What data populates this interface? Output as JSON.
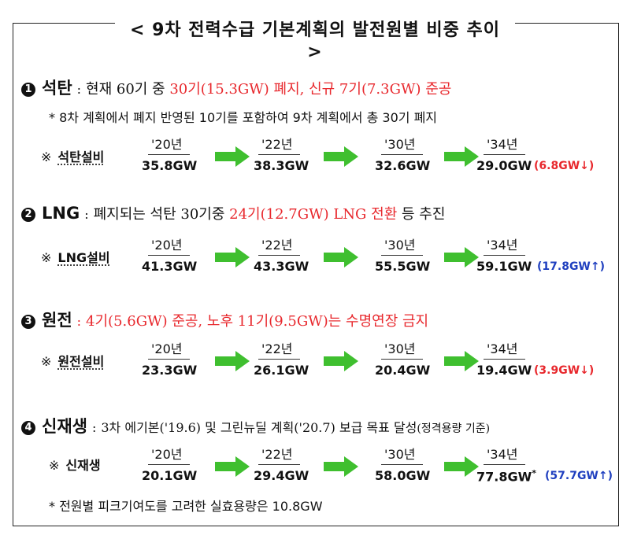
{
  "title": {
    "line1": "< 9차 전력수급 기본계획의 발전원별 비중 추이",
    "line2": ">"
  },
  "years": [
    "'20년",
    "'22년",
    "'30년",
    "'34년"
  ],
  "sections": [
    {
      "number": "1",
      "name": "석탄",
      "separator": ":",
      "text_a": "현재 60기 중 ",
      "text_red": "30기(15.3GW) 폐지, 신규 7기(7.3GW) 준공",
      "note": "* 8차 계획에서 폐지 반영된 10기를 포함하여 9차 계획에서 총 30기 폐지",
      "row_mark": "※",
      "row_label": "석탄설비",
      "values": [
        "35.8GW",
        "38.3GW",
        "32.6GW",
        "29.0GW"
      ],
      "delta": "(6.8GW↓)",
      "delta_color": "#e8282d"
    },
    {
      "number": "2",
      "name": "LNG",
      "separator": ":",
      "text_a": "폐지되는 석탄 30기중 ",
      "text_red": "24기(12.7GW) LNG 전환",
      "text_b": " 등 추진",
      "row_mark": "※",
      "row_label": "LNG설비",
      "values": [
        "41.3GW",
        "43.3GW",
        "55.5GW",
        "59.1GW"
      ],
      "delta": "(17.8GW↑)",
      "delta_color": "#1f3fbf"
    },
    {
      "number": "3",
      "name": "원전",
      "separator": ":",
      "text_red": "4기(5.6GW) 준공, 노후 11기(9.5GW)는 수명연장 금지",
      "row_mark": "※",
      "row_label": "원전설비",
      "values": [
        "23.3GW",
        "26.1GW",
        "20.4GW",
        "19.4GW"
      ],
      "delta": "(3.9GW↓)",
      "delta_color": "#e8282d"
    },
    {
      "number": "4",
      "name": "신재생",
      "separator": ":",
      "text_a": "3차 에기본('19.6) 및 그린뉴딜 계획('20.7) 보급 목표 달성",
      "text_small": "(정격용량 기준)",
      "note": "* 전원별 피크기여도를 고려한 실효용량은 10.8GW",
      "row_mark": "※",
      "row_label": "신재생",
      "values": [
        "20.1GW",
        "29.4GW",
        "58.0GW",
        "77.8GW"
      ],
      "value_suffix": "*",
      "delta": "(57.7GW↑)",
      "delta_color": "#1f3fbf"
    }
  ],
  "arrow_color": "#3fbf2f"
}
